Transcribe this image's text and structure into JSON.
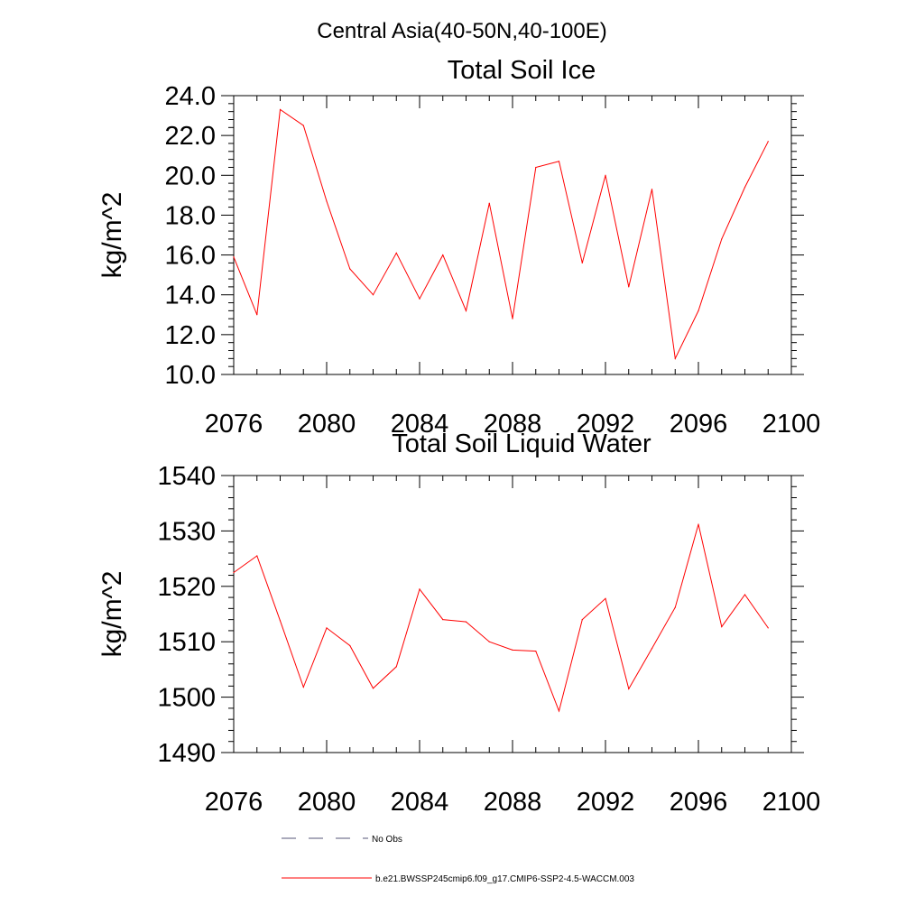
{
  "suptitle": "Central Asia(40-50N,40-100E)",
  "colors": {
    "series": "#ff0000",
    "obs": "#555577",
    "axis": "#000000"
  },
  "chart_data": [
    {
      "type": "line",
      "title": "Total Soil Ice",
      "xlabel": "",
      "ylabel": "kg/m^2",
      "xlim": [
        2076,
        2100
      ],
      "ylim": [
        10,
        24
      ],
      "xticks": [
        2076,
        2080,
        2084,
        2088,
        2092,
        2096,
        2100
      ],
      "xtick_labels": [
        "2076",
        "2080",
        "2084",
        "2088",
        "2092",
        "2096",
        "2100"
      ],
      "yticks": [
        10,
        12,
        14,
        16,
        18,
        20,
        22,
        24
      ],
      "ytick_labels": [
        "10.0",
        "12.0",
        "14.0",
        "16.0",
        "18.0",
        "20.0",
        "22.0",
        "24.0"
      ],
      "grid": false,
      "series": [
        {
          "name": "b.e21.BWSSP245cmip6.f09_g17.CMIP6-SSP2-4.5-WACCM.003",
          "x": [
            2076,
            2077,
            2078,
            2079,
            2080,
            2081,
            2082,
            2083,
            2084,
            2085,
            2086,
            2087,
            2088,
            2089,
            2090,
            2091,
            2092,
            2093,
            2094,
            2095,
            2096,
            2097,
            2098,
            2099
          ],
          "values": [
            15.9,
            13.0,
            23.3,
            22.5,
            18.7,
            15.3,
            14.0,
            16.1,
            13.8,
            16.0,
            13.2,
            18.6,
            12.8,
            20.4,
            20.7,
            15.6,
            20.0,
            14.4,
            19.3,
            10.8,
            13.2,
            16.8,
            19.4,
            21.7
          ]
        }
      ]
    },
    {
      "type": "line",
      "title": "Total Soil Liquid Water",
      "xlabel": "",
      "ylabel": "kg/m^2",
      "xlim": [
        2076,
        2100
      ],
      "ylim": [
        1490,
        1540
      ],
      "xticks": [
        2076,
        2080,
        2084,
        2088,
        2092,
        2096,
        2100
      ],
      "xtick_labels": [
        "2076",
        "2080",
        "2084",
        "2088",
        "2092",
        "2096",
        "2100"
      ],
      "yticks": [
        1490,
        1500,
        1510,
        1520,
        1530,
        1540
      ],
      "ytick_labels": [
        "1490",
        "1500",
        "1510",
        "1520",
        "1530",
        "1540"
      ],
      "grid": false,
      "series": [
        {
          "name": "b.e21.BWSSP245cmip6.f09_g17.CMIP6-SSP2-4.5-WACCM.003",
          "x": [
            2076,
            2077,
            2078,
            2079,
            2080,
            2081,
            2082,
            2083,
            2084,
            2085,
            2086,
            2087,
            2088,
            2089,
            2090,
            2091,
            2092,
            2093,
            2094,
            2095,
            2096,
            2097,
            2098,
            2099
          ],
          "values": [
            1522.5,
            1525.5,
            1513.8,
            1501.8,
            1512.5,
            1509.3,
            1501.6,
            1505.5,
            1519.5,
            1514.0,
            1513.6,
            1510.0,
            1508.5,
            1508.3,
            1497.5,
            1514.0,
            1517.8,
            1501.5,
            1508.8,
            1516.2,
            1531.2,
            1512.7,
            1518.5,
            1512.5
          ]
        }
      ]
    }
  ],
  "legend": [
    {
      "label": "No Obs",
      "style": "dashed"
    },
    {
      "label": "b.e21.BWSSP245cmip6.f09_g17.CMIP6-SSP2-4.5-WACCM.003",
      "style": "solid"
    }
  ]
}
